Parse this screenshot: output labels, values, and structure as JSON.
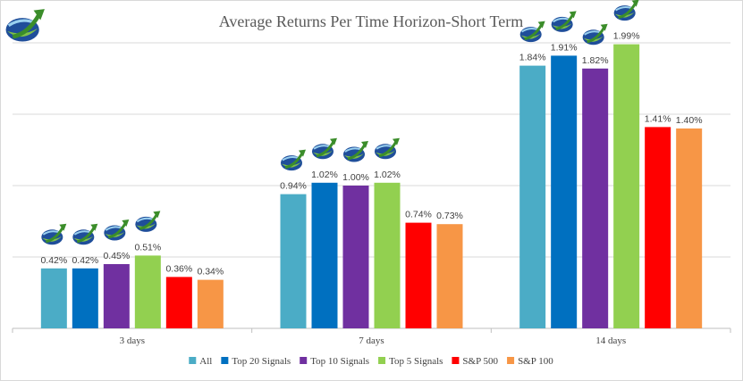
{
  "chart_data": {
    "type": "bar",
    "title": "Average Returns Per Time Horizon-Short Term",
    "categories": [
      "3 days",
      "7 days",
      "14 days"
    ],
    "series": [
      {
        "name": "All",
        "color": "#4bacc6",
        "values": [
          0.42,
          0.94,
          1.84
        ],
        "labels": [
          "0.42%",
          "0.94%",
          "1.84%"
        ],
        "logo": true
      },
      {
        "name": "Top 20 Signals",
        "color": "#0070c0",
        "values": [
          0.42,
          1.02,
          1.91
        ],
        "labels": [
          "0.42%",
          "1.02%",
          "1.91%"
        ],
        "logo": true
      },
      {
        "name": "Top 10 Signals",
        "color": "#7030a0",
        "values": [
          0.45,
          1.0,
          1.82
        ],
        "labels": [
          "0.45%",
          "1.00%",
          "1.82%"
        ],
        "logo": true
      },
      {
        "name": "Top 5 Signals",
        "color": "#92d050",
        "values": [
          0.51,
          1.02,
          1.99
        ],
        "labels": [
          "0.51%",
          "1.02%",
          "1.99%"
        ],
        "logo": true
      },
      {
        "name": "S&P 500",
        "color": "#ff0000",
        "values": [
          0.36,
          0.74,
          1.41
        ],
        "labels": [
          "0.36%",
          "0.74%",
          "1.41%"
        ],
        "logo": false
      },
      {
        "name": "S&P 100",
        "color": "#f79646",
        "values": [
          0.34,
          0.73,
          1.4
        ],
        "labels": [
          "0.34%",
          "0.73%",
          "1.40%"
        ],
        "logo": false
      }
    ],
    "ylim": [
      0,
      2.0
    ],
    "grid": true,
    "legend": "bottom"
  },
  "icons": {
    "brand_logo": "globe-arrow-logo-icon"
  }
}
